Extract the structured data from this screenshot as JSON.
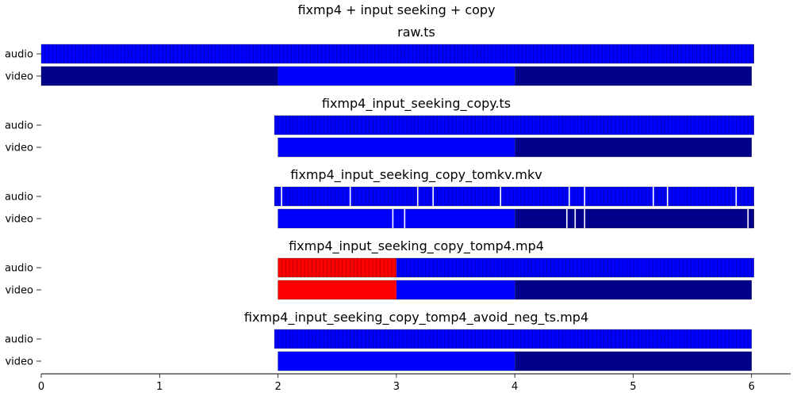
{
  "title": "fixmp4 + input seeking + copy",
  "chart_data": {
    "type": "packet-timeline",
    "xlim": [
      0,
      6.33
    ],
    "x_ticks": [
      "0",
      "1",
      "2",
      "3",
      "4",
      "5",
      "6"
    ],
    "colors": {
      "normal_dark": "#00008b",
      "normal_bright": "#0000ff",
      "negative": "#ff0000",
      "gap": "#ffffff"
    },
    "panels": [
      {
        "title": "raw.ts",
        "tracks": [
          {
            "label": "audio",
            "start": 0.0,
            "end": 6.02,
            "packet_duration": 0.032,
            "segments": [
              {
                "from": 0.0,
                "to": 6.02,
                "color": "normal_bright"
              }
            ],
            "gaps": []
          },
          {
            "label": "video",
            "start": 0.0,
            "end": 6.0,
            "packet_duration": 0,
            "segments": [
              {
                "from": 0.0,
                "to": 2.0,
                "color": "normal_dark"
              },
              {
                "from": 2.0,
                "to": 4.0,
                "color": "normal_bright"
              },
              {
                "from": 4.0,
                "to": 6.0,
                "color": "normal_dark"
              }
            ],
            "gaps": []
          }
        ]
      },
      {
        "title": "fixmp4_input_seeking_copy.ts",
        "tracks": [
          {
            "label": "audio",
            "start": 1.97,
            "end": 6.02,
            "packet_duration": 0.032,
            "segments": [
              {
                "from": 1.97,
                "to": 6.02,
                "color": "normal_bright"
              }
            ],
            "gaps": []
          },
          {
            "label": "video",
            "start": 2.0,
            "end": 6.0,
            "packet_duration": 0,
            "segments": [
              {
                "from": 2.0,
                "to": 4.0,
                "color": "normal_bright"
              },
              {
                "from": 4.0,
                "to": 6.0,
                "color": "normal_dark"
              }
            ],
            "gaps": []
          }
        ]
      },
      {
        "title": "fixmp4_input_seeking_copy_tomkv.mkv",
        "tracks": [
          {
            "label": "audio",
            "start": 1.97,
            "end": 6.02,
            "packet_duration": 0.032,
            "segments": [
              {
                "from": 1.97,
                "to": 6.02,
                "color": "normal_bright"
              }
            ],
            "gaps": [
              2.03,
              2.61,
              3.18,
              3.31,
              3.88,
              4.46,
              4.59,
              5.17,
              5.29,
              5.87
            ]
          },
          {
            "label": "video",
            "start": 2.0,
            "end": 6.02,
            "packet_duration": 0,
            "segments": [
              {
                "from": 2.0,
                "to": 4.0,
                "color": "normal_bright"
              },
              {
                "from": 4.0,
                "to": 6.02,
                "color": "normal_dark"
              }
            ],
            "gaps": [
              2.97,
              3.07,
              4.44,
              4.51,
              4.59,
              5.97
            ]
          }
        ]
      },
      {
        "title": "fixmp4_input_seeking_copy_tomp4.mp4",
        "tracks": [
          {
            "label": "audio",
            "start": 2.0,
            "end": 6.02,
            "packet_duration": 0.032,
            "segments": [
              {
                "from": 2.0,
                "to": 3.0,
                "color": "negative"
              },
              {
                "from": 3.0,
                "to": 6.02,
                "color": "normal_bright"
              }
            ],
            "gaps": []
          },
          {
            "label": "video",
            "start": 2.0,
            "end": 6.0,
            "packet_duration": 0,
            "segments": [
              {
                "from": 2.0,
                "to": 3.0,
                "color": "negative"
              },
              {
                "from": 3.0,
                "to": 4.0,
                "color": "normal_bright"
              },
              {
                "from": 4.0,
                "to": 6.0,
                "color": "normal_dark"
              }
            ],
            "gaps": []
          }
        ]
      },
      {
        "title": "fixmp4_input_seeking_copy_tomp4_avoid_neg_ts.mp4",
        "tracks": [
          {
            "label": "audio",
            "start": 1.97,
            "end": 6.0,
            "packet_duration": 0.032,
            "segments": [
              {
                "from": 1.97,
                "to": 6.0,
                "color": "normal_bright"
              }
            ],
            "gaps": []
          },
          {
            "label": "video",
            "start": 2.0,
            "end": 6.0,
            "packet_duration": 0,
            "segments": [
              {
                "from": 2.0,
                "to": 4.0,
                "color": "normal_bright"
              },
              {
                "from": 4.0,
                "to": 6.0,
                "color": "normal_dark"
              }
            ],
            "gaps": []
          }
        ]
      }
    ]
  }
}
